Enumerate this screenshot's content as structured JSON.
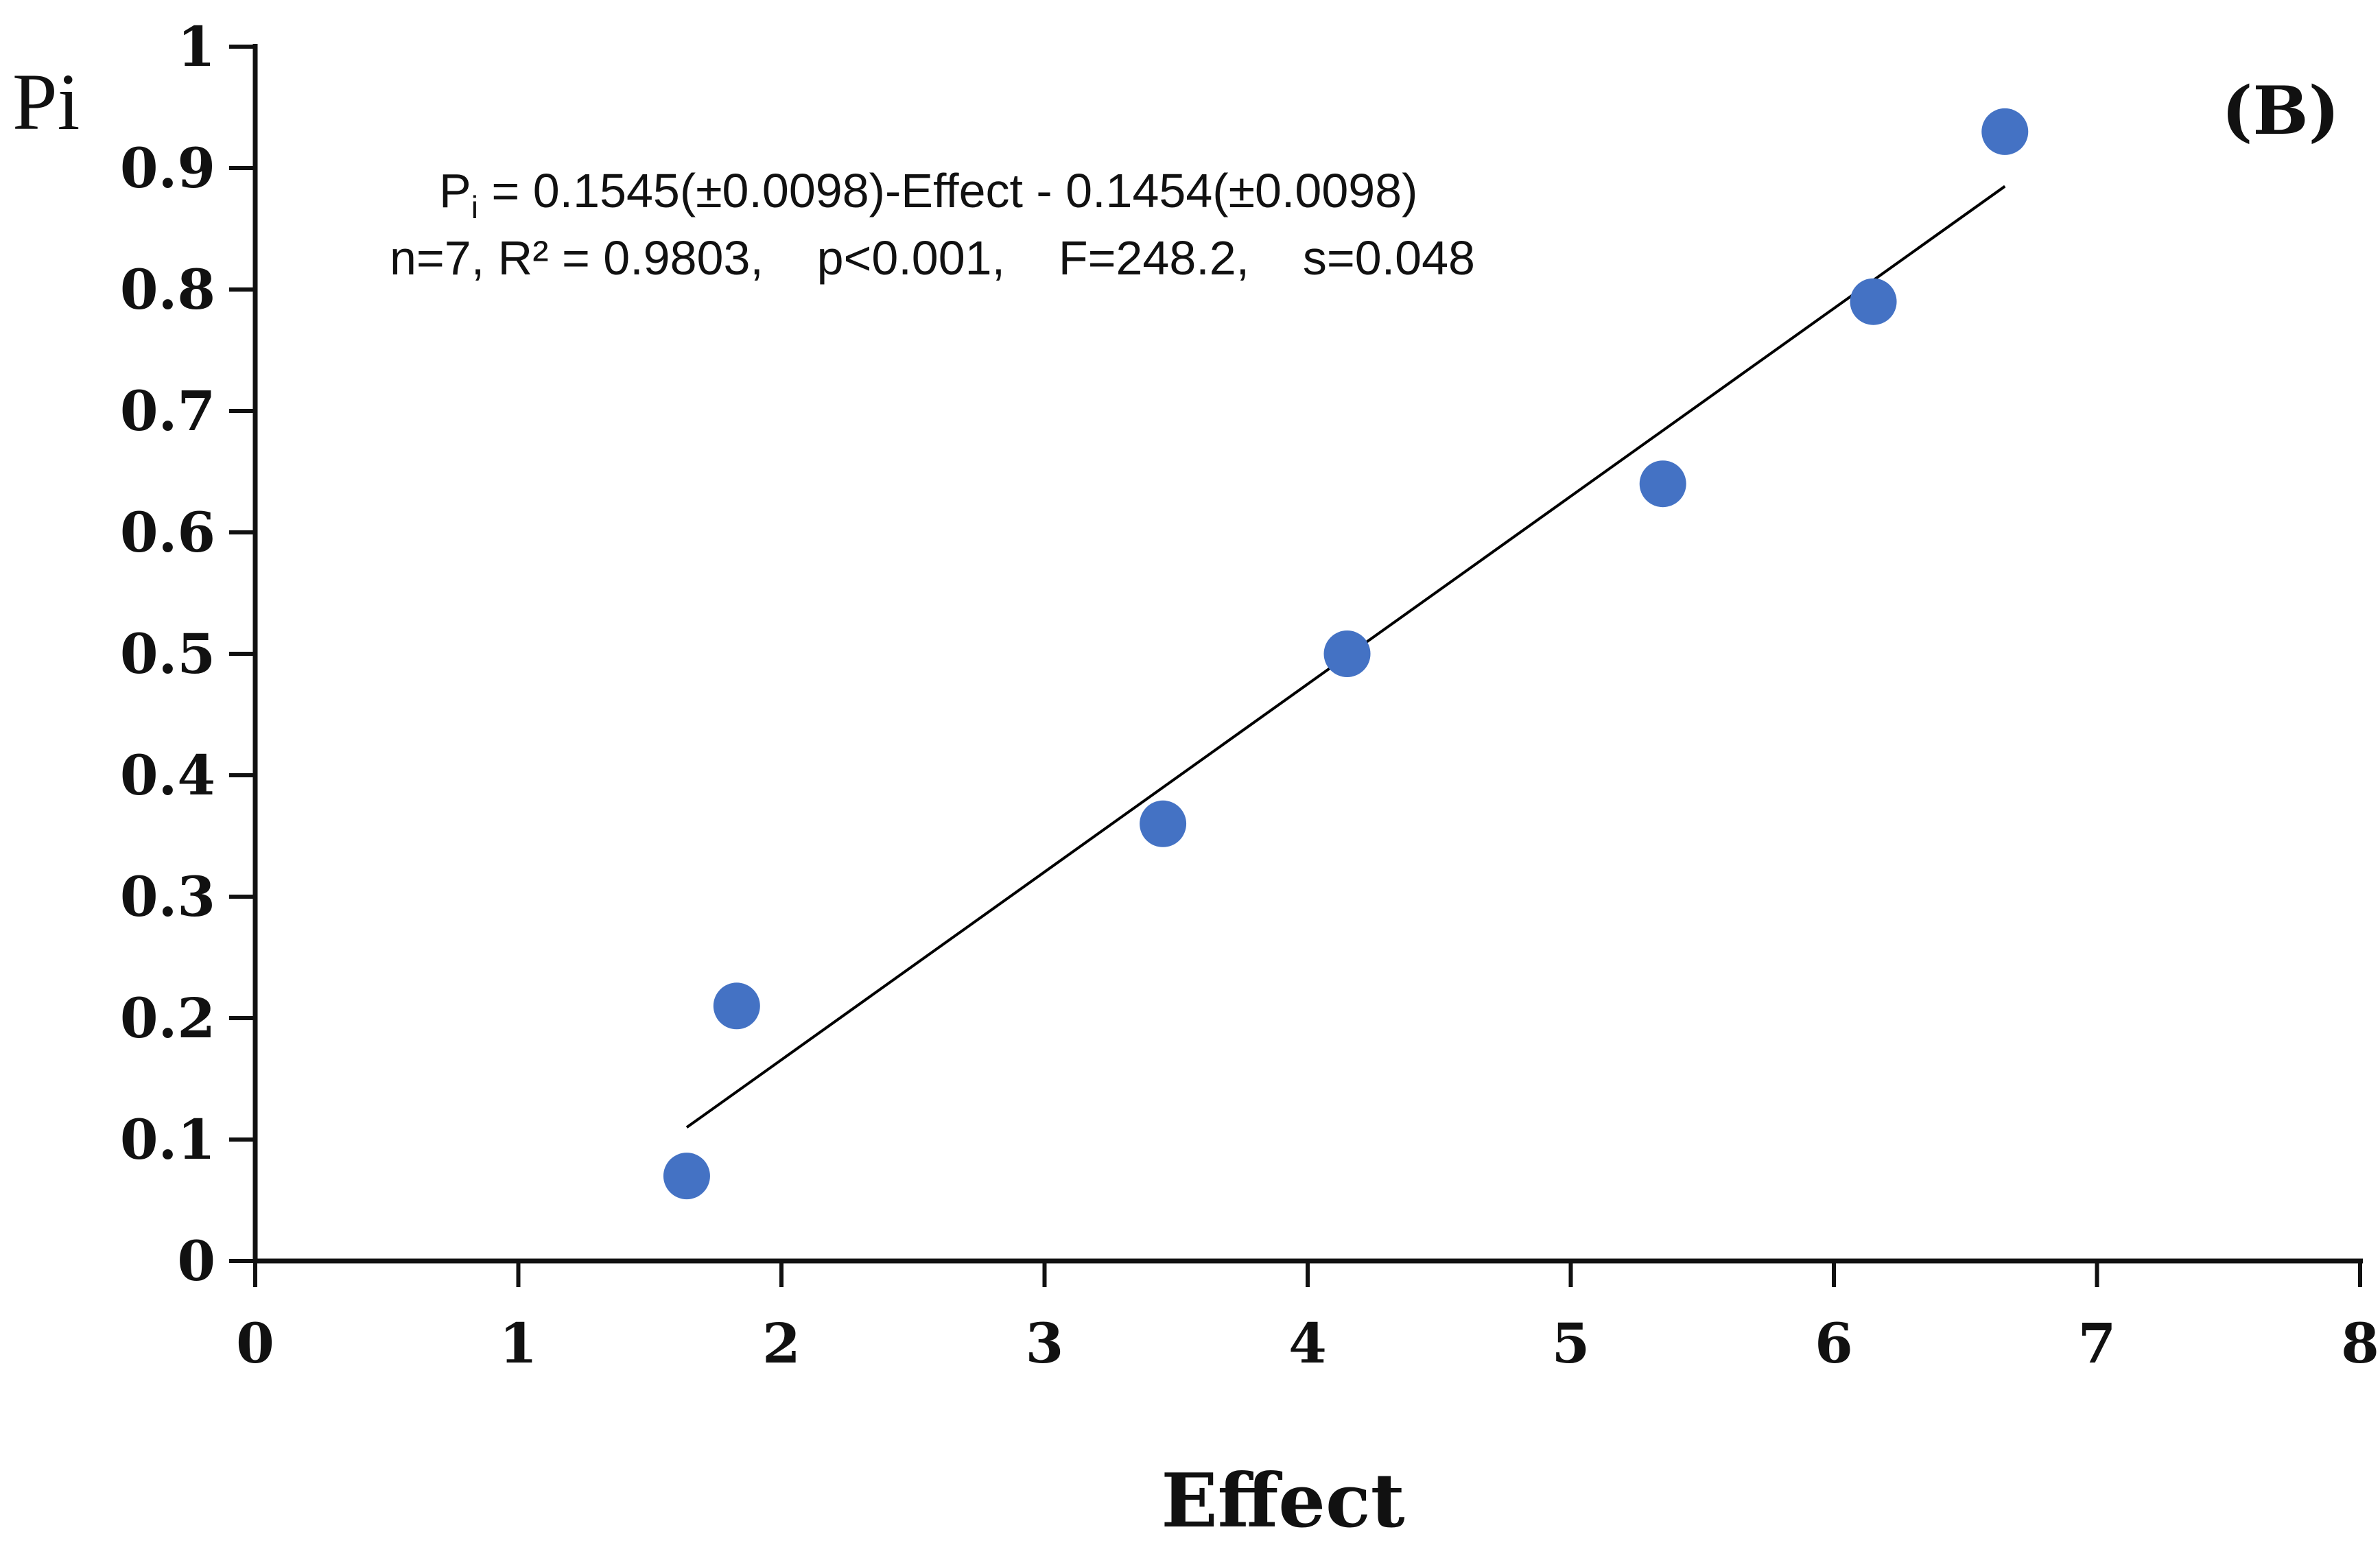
{
  "chart_data": {
    "type": "scatter",
    "title": "",
    "panel_label": "(B)",
    "xlabel": "Effect",
    "ylabel": "Pi",
    "xlim": [
      0,
      8
    ],
    "ylim": [
      0,
      1
    ],
    "xticks": [
      "0",
      "1",
      "2",
      "3",
      "4",
      "5",
      "6",
      "7",
      "8"
    ],
    "yticks": [
      "0",
      "0.1",
      "0.2",
      "0.3",
      "0.4",
      "0.5",
      "0.6",
      "0.7",
      "0.8",
      "0.9",
      "1"
    ],
    "grid": false,
    "series": [
      {
        "name": "Pi",
        "color": "#4472C4",
        "points": [
          {
            "x": 1.64,
            "y": 0.07
          },
          {
            "x": 1.83,
            "y": 0.21
          },
          {
            "x": 3.45,
            "y": 0.36
          },
          {
            "x": 4.15,
            "y": 0.5
          },
          {
            "x": 5.35,
            "y": 0.64
          },
          {
            "x": 6.15,
            "y": 0.79
          },
          {
            "x": 6.65,
            "y": 0.93
          }
        ]
      }
    ],
    "trendline": {
      "color": "#000000",
      "x_start": 1.64,
      "x_end": 6.65,
      "y_start": 0.11,
      "y_end": 0.885
    },
    "annotation": {
      "eq_P": "P",
      "eq_sub": "i",
      "eq_rest": " = 0.1545(±0.0098)-Effect  - 0.1454(±0.0098)",
      "stats": "n=7, R² = 0.9803,    p<0.001,    F=248.2,    s=0.048"
    }
  }
}
